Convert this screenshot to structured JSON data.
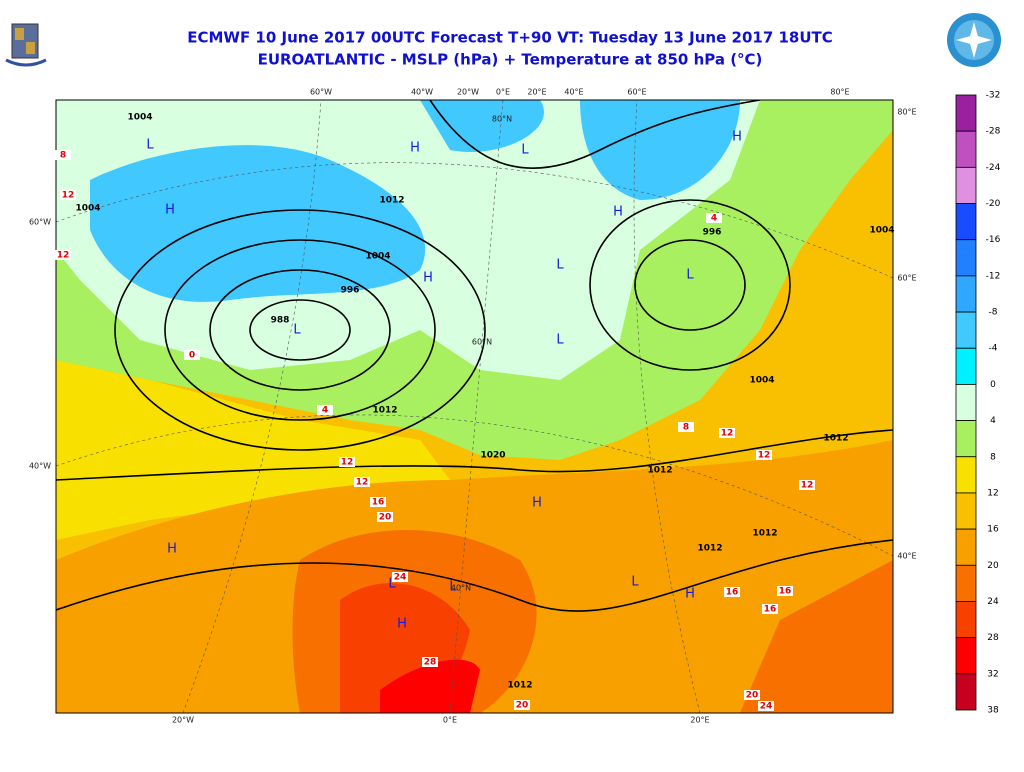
{
  "header": {
    "title_line1": "ECMWF 10 June 2017 00UTC Forecast T+90 VT: Tuesday 13 June 2017 18UTC",
    "title_line2": "EUROATLANTIC - MSLP (hPa) + Temperature at 850 hPa (°C)"
  },
  "map": {
    "top_labels": [
      "60°W",
      "40°W",
      "20°W",
      "0°E",
      "20°E",
      "40°E",
      "60°E",
      "80°E"
    ],
    "left_labels": [
      "60°W",
      "40°W"
    ],
    "bottom_labels": [
      "20°W",
      "0°E",
      "20°E"
    ],
    "right_labels": [
      "80°E",
      "60°E",
      "40°E"
    ],
    "inner_labels": [
      "80°N",
      "60°N",
      "40°N"
    ],
    "isobar_labels": [
      "1004",
      "1004",
      "1012",
      "1004",
      "996",
      "988",
      "1012",
      "1020",
      "1012",
      "1012",
      "1012",
      "1012",
      "1004",
      "996",
      "1004",
      "1012"
    ],
    "isotherm_labels": [
      "12",
      "12",
      "8",
      "0",
      "4",
      "12",
      "12",
      "16",
      "20",
      "24",
      "28",
      "20",
      "12",
      "12",
      "12",
      "8",
      "4",
      "16",
      "16",
      "16",
      "20",
      "24"
    ],
    "pressure_centers": [
      "L",
      "L",
      "H",
      "H",
      "H",
      "L",
      "H",
      "H",
      "L",
      "L",
      "L",
      "H",
      "L",
      "H",
      "L",
      "H",
      "H",
      "L"
    ]
  },
  "colorbar": {
    "labels": [
      "-32",
      "-28",
      "-24",
      "-20",
      "-16",
      "-12",
      "-8",
      "-4",
      "0",
      "4",
      "8",
      "12",
      "16",
      "20",
      "24",
      "28",
      "32",
      "38"
    ],
    "colors": [
      "#9b20a0",
      "#c050c0",
      "#e090e0",
      "#1a4cff",
      "#2080ff",
      "#30a8ff",
      "#40c8ff",
      "#00f0ff",
      "#d8ffe0",
      "#a8f060",
      "#f8e000",
      "#f8c000",
      "#f8a000",
      "#f87000",
      "#f84000",
      "#ff0000",
      "#c80020"
    ]
  }
}
